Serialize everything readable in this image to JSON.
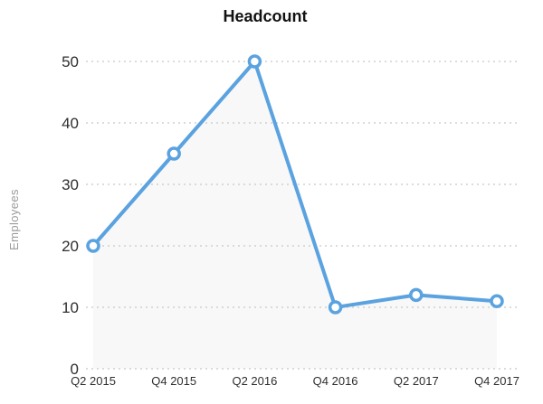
{
  "chart_data": {
    "type": "line",
    "title": "Headcount",
    "ylabel": "Employees",
    "xlabel": "",
    "categories": [
      "Q2 2015",
      "Q4 2015",
      "Q2 2016",
      "Q4 2016",
      "Q2 2017",
      "Q4 2017"
    ],
    "values": [
      20,
      35,
      50,
      10,
      12,
      11
    ],
    "yticks": [
      0,
      10,
      20,
      30,
      40,
      50
    ],
    "ylim": [
      0,
      50
    ],
    "grid": "dotted-horizontal",
    "legend": "none",
    "colors": {
      "line": "#5AA2E0",
      "marker_fill": "#FFFFFF",
      "marker_stroke": "#5AA2E0",
      "grid": "#C8C8C8",
      "title_text": "#111111",
      "tick_text": "#2E2E2E",
      "axis_label_text": "#9B9B9B",
      "area_fill": "#F8F8F8"
    }
  }
}
